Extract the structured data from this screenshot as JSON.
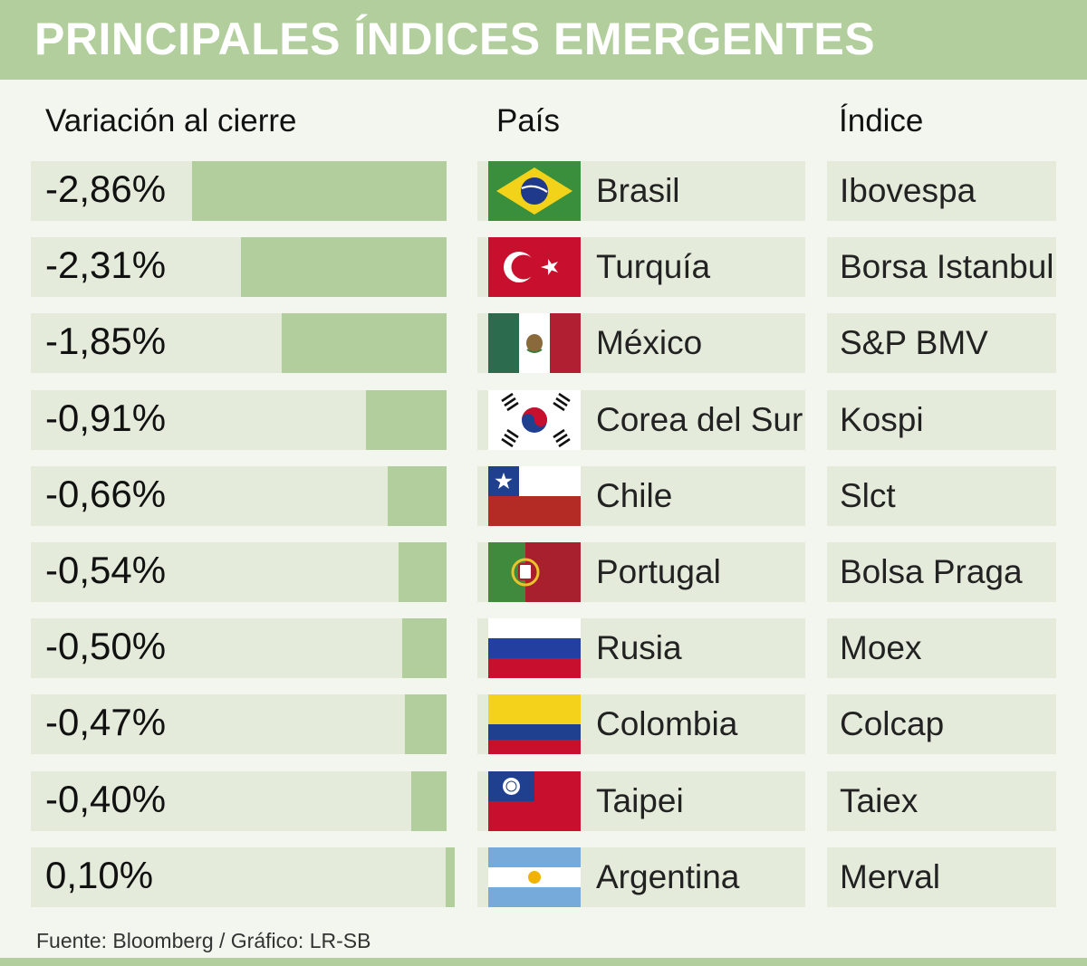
{
  "header": {
    "title": "PRINCIPALES ÍNDICES EMERGENTES"
  },
  "columns": {
    "variation": "Variación al cierre",
    "country": "País",
    "index": "Índice"
  },
  "rows": [
    {
      "value_label": "-2,86%",
      "country": "Brasil",
      "index": "Ibovespa"
    },
    {
      "value_label": "-2,31%",
      "country": "Turquía",
      "index": "Borsa Istanbul"
    },
    {
      "value_label": "-1,85%",
      "country": "México",
      "index": "S&P BMV"
    },
    {
      "value_label": "-0,91%",
      "country": "Corea del Sur",
      "index": "Kospi"
    },
    {
      "value_label": "-0,66%",
      "country": "Chile",
      "index": "Slct"
    },
    {
      "value_label": "-0,54%",
      "country": "Portugal",
      "index": "Bolsa Praga"
    },
    {
      "value_label": "-0,50%",
      "country": "Rusia",
      "index": "Moex"
    },
    {
      "value_label": "-0,47%",
      "country": "Colombia",
      "index": "Colcap"
    },
    {
      "value_label": "-0,40%",
      "country": "Taipei",
      "index": "Taiex"
    },
    {
      "value_label": "0,10%",
      "country": "Argentina",
      "index": "Merval"
    }
  ],
  "chart_data": {
    "type": "bar",
    "orientation": "horizontal",
    "title": "PRINCIPALES ÍNDICES EMERGENTES",
    "xlabel": "Variación al cierre",
    "categories": [
      "Brasil",
      "Turquía",
      "México",
      "Corea del Sur",
      "Chile",
      "Portugal",
      "Rusia",
      "Colombia",
      "Taipei",
      "Argentina"
    ],
    "values": [
      -2.86,
      -2.31,
      -1.85,
      -0.91,
      -0.66,
      -0.54,
      -0.5,
      -0.47,
      -0.4,
      0.1
    ],
    "unit": "%",
    "xlim": [
      -2.86,
      0.1
    ]
  },
  "footer": {
    "source": "Fuente: Bloomberg / Gráfico: LR-SB"
  },
  "colors": {
    "banner": "#b2ce9c",
    "bar": "#b2ce9c",
    "cell": "#e4ebdb",
    "background": "#f3f6ee"
  },
  "flag_icons": [
    "brazil-flag-icon",
    "turkey-flag-icon",
    "mexico-flag-icon",
    "south-korea-flag-icon",
    "chile-flag-icon",
    "portugal-flag-icon",
    "russia-flag-icon",
    "colombia-flag-icon",
    "taiwan-flag-icon",
    "argentina-flag-icon"
  ]
}
